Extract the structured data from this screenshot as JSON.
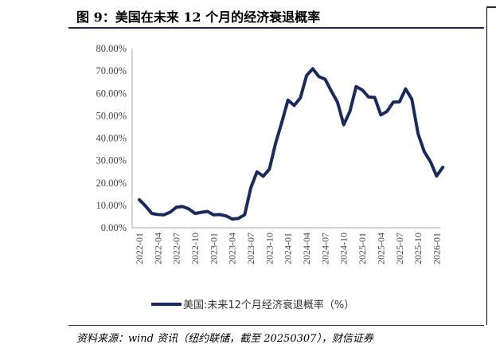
{
  "figure": {
    "title": "图 9：美国在未来 12 个月的经济衰退概率",
    "source": "资料来源：wind 资讯（纽约联储，截至 20250307），财信证券"
  },
  "chart_data": {
    "type": "line",
    "ylim": [
      0,
      80
    ],
    "y_ticks": [
      0,
      10,
      20,
      30,
      40,
      50,
      60,
      70,
      80
    ],
    "y_tick_labels": [
      "0.00%",
      "10.00%",
      "20.00%",
      "30.00%",
      "40.00%",
      "50.00%",
      "60.00%",
      "70.00%",
      "80.00%"
    ],
    "x_tick_labels": [
      "2022-01",
      "2022-04",
      "2022-07",
      "2022-10",
      "2023-01",
      "2023-04",
      "2023-07",
      "2023-10",
      "2024-01",
      "2024-04",
      "2024-07",
      "2024-10",
      "2025-01",
      "2025-04",
      "2025-07",
      "2025-10",
      "2026-01"
    ],
    "x": [
      "2022-01",
      "2022-02",
      "2022-03",
      "2022-04",
      "2022-05",
      "2022-06",
      "2022-07",
      "2022-08",
      "2022-09",
      "2022-10",
      "2022-11",
      "2022-12",
      "2023-01",
      "2023-02",
      "2023-03",
      "2023-04",
      "2023-05",
      "2023-06",
      "2023-07",
      "2023-08",
      "2023-09",
      "2023-10",
      "2023-11",
      "2023-12",
      "2024-01",
      "2024-02",
      "2024-03",
      "2024-04",
      "2024-05",
      "2024-06",
      "2024-07",
      "2024-08",
      "2024-09",
      "2024-10",
      "2024-11",
      "2024-12",
      "2025-01",
      "2025-02",
      "2025-03",
      "2025-04",
      "2025-05",
      "2025-06",
      "2025-07",
      "2025-08",
      "2025-09",
      "2025-10",
      "2025-11",
      "2025-12",
      "2026-01",
      "2026-02"
    ],
    "series": [
      {
        "name": "美国:未来12个月经济衰退概率（%）",
        "color": "#1a2a5c",
        "values": [
          12.5,
          9.7,
          6.4,
          5.9,
          5.8,
          7.0,
          9.2,
          9.5,
          8.4,
          6.4,
          6.9,
          7.3,
          5.8,
          5.9,
          5.3,
          3.9,
          4.2,
          5.8,
          17.8,
          25.0,
          23.0,
          26.2,
          37.8,
          47.0,
          57.0,
          54.6,
          58.0,
          68.0,
          71.0,
          67.5,
          66.3,
          61.0,
          56.0,
          46.0,
          52.0,
          63.0,
          61.5,
          58.4,
          58.2,
          50.4,
          52.0,
          56.1,
          56.2,
          62.0,
          57.4,
          42.0,
          34.0,
          29.5,
          23.1,
          27.0
        ]
      }
    ],
    "legend_position": "bottom"
  }
}
